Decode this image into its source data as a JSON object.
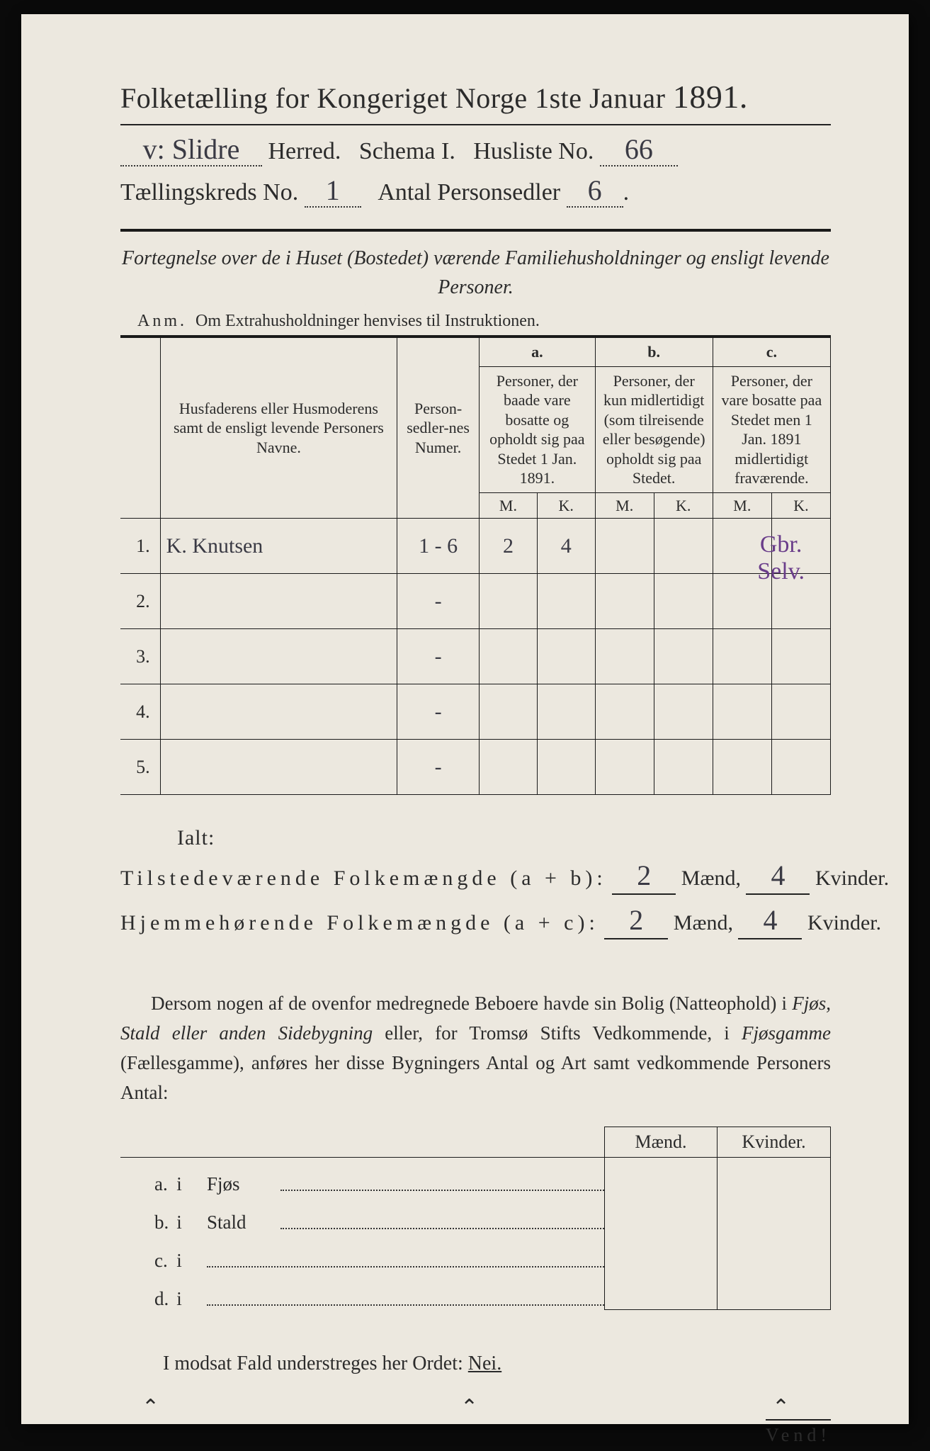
{
  "colors": {
    "paper_bg": "#ece8df",
    "ink": "#2b2b2b",
    "handwriting": "#3a3a44",
    "handwriting_accent": "#6a3d8a",
    "rule": "#1a1a1a"
  },
  "header": {
    "title_pre": "Folketælling for Kongeriget Norge 1ste Januar",
    "title_year": "1891.",
    "herred_value": "v: Slidre",
    "herred_label": "Herred.",
    "schema_label": "Schema I.",
    "husliste_label": "Husliste No.",
    "husliste_value": "66",
    "kreds_label": "Tællingskreds No.",
    "kreds_value": "1",
    "antal_label": "Antal Personsedler",
    "antal_value": "6"
  },
  "intro": {
    "line": "Fortegnelse over de i Huset (Bostedet) værende Familiehusholdninger og ensligt levende Personer.",
    "anm_label": "Anm.",
    "anm_text": "Om Extrahusholdninger henvises til Instruktionen."
  },
  "table": {
    "col_name": "Husfaderens eller Husmoderens samt de ensligt levende Personers Navne.",
    "col_psn": "Person-sedler-nes Numer.",
    "col_a_label": "a.",
    "col_a": "Personer, der baade vare bosatte og opholdt sig paa Stedet 1 Jan. 1891.",
    "col_b_label": "b.",
    "col_b": "Personer, der kun midlertidigt (som tilreisende eller besøgende) opholdt sig paa Stedet.",
    "col_c_label": "c.",
    "col_c": "Personer, der vare bosatte paa Stedet men 1 Jan. 1891 midlertidigt fraværende.",
    "m": "M.",
    "k": "K.",
    "rows": [
      {
        "n": "1.",
        "name": "K. Knutsen",
        "psn": "1 - 6",
        "am": "2",
        "ak": "4",
        "bm": "",
        "bk": "",
        "cm": "",
        "ck": "",
        "note": "Gbr. Selv."
      },
      {
        "n": "2.",
        "name": "",
        "psn": "-",
        "am": "",
        "ak": "",
        "bm": "",
        "bk": "",
        "cm": "",
        "ck": "",
        "note": ""
      },
      {
        "n": "3.",
        "name": "",
        "psn": "-",
        "am": "",
        "ak": "",
        "bm": "",
        "bk": "",
        "cm": "",
        "ck": "",
        "note": ""
      },
      {
        "n": "4.",
        "name": "",
        "psn": "-",
        "am": "",
        "ak": "",
        "bm": "",
        "bk": "",
        "cm": "",
        "ck": "",
        "note": ""
      },
      {
        "n": "5.",
        "name": "",
        "psn": "-",
        "am": "",
        "ak": "",
        "bm": "",
        "bk": "",
        "cm": "",
        "ck": "",
        "note": ""
      }
    ]
  },
  "totals": {
    "ialt": "Ialt:",
    "row1_label": "Tilstedeværende Folkemængde (a + b):",
    "row2_label": "Hjemmehørende Folkemængde (a + c):",
    "maend": "Mænd,",
    "kvinder": "Kvinder.",
    "r1m": "2",
    "r1k": "4",
    "r2m": "2",
    "r2k": "4"
  },
  "para": "Dersom nogen af de ovenfor medregnede Beboere havde sin Bolig (Natteophold) i Fjøs, Stald eller anden Sidebygning eller, for Tromsø Stifts Vedkommende, i Fjøsgamme (Fællesgamme), anføres her disse Bygningers Antal og Art samt vedkommende Personers Antal:",
  "dwell": {
    "maend": "Mænd.",
    "kvinder": "Kvinder.",
    "rows": [
      {
        "lab": "a.",
        "i": "i",
        "txt": "Fjøs"
      },
      {
        "lab": "b.",
        "i": "i",
        "txt": "Stald"
      },
      {
        "lab": "c.",
        "i": "i",
        "txt": ""
      },
      {
        "lab": "d.",
        "i": "i",
        "txt": ""
      }
    ]
  },
  "footer": {
    "nei_pre": "I modsat Fald understreges her Ordet:",
    "nei": "Nei.",
    "vend": "Vend!"
  }
}
